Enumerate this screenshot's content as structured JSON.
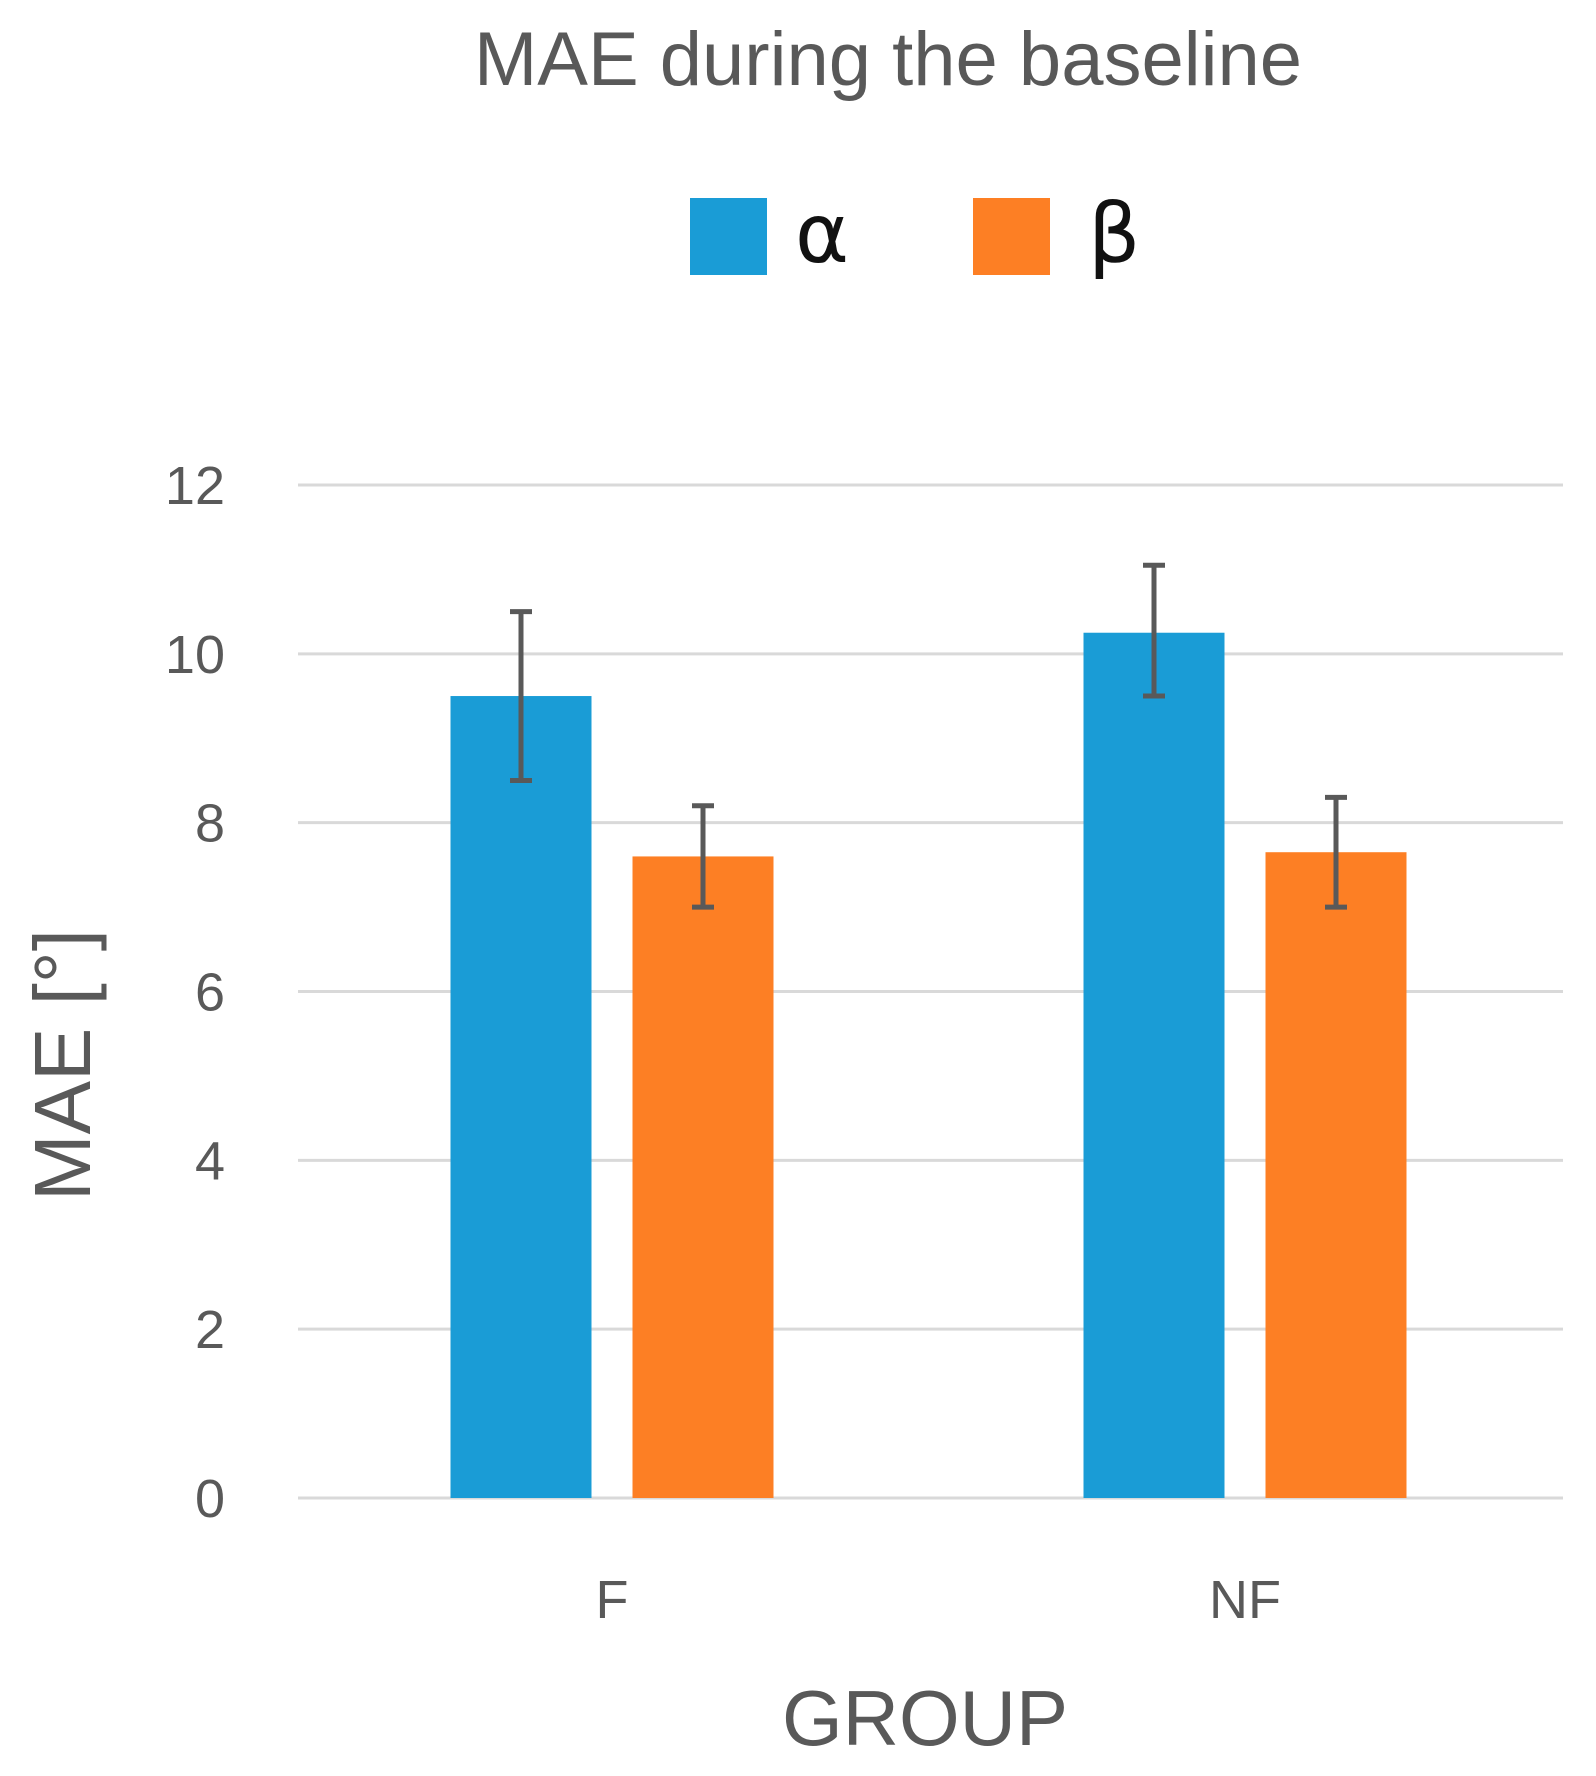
{
  "chart_data": {
    "type": "bar",
    "title": "MAE during the baseline",
    "xlabel": "GROUP",
    "ylabel": "MAE [°]",
    "categories": [
      "F",
      "NF"
    ],
    "series": [
      {
        "name": "α",
        "color": "#1a9cd6",
        "values": [
          9.5,
          10.25
        ],
        "error_low": [
          8.5,
          9.5
        ],
        "error_high": [
          10.5,
          11.05
        ]
      },
      {
        "name": "β",
        "color": "#fd7f24",
        "values": [
          7.6,
          7.65
        ],
        "error_low": [
          7.0,
          7.0
        ],
        "error_high": [
          8.2,
          8.3
        ]
      }
    ],
    "ylim": [
      0,
      12
    ],
    "yticks": [
      "0",
      "2",
      "4",
      "6",
      "8",
      "10",
      "12"
    ],
    "grid": true,
    "legend_position": "top-center"
  }
}
